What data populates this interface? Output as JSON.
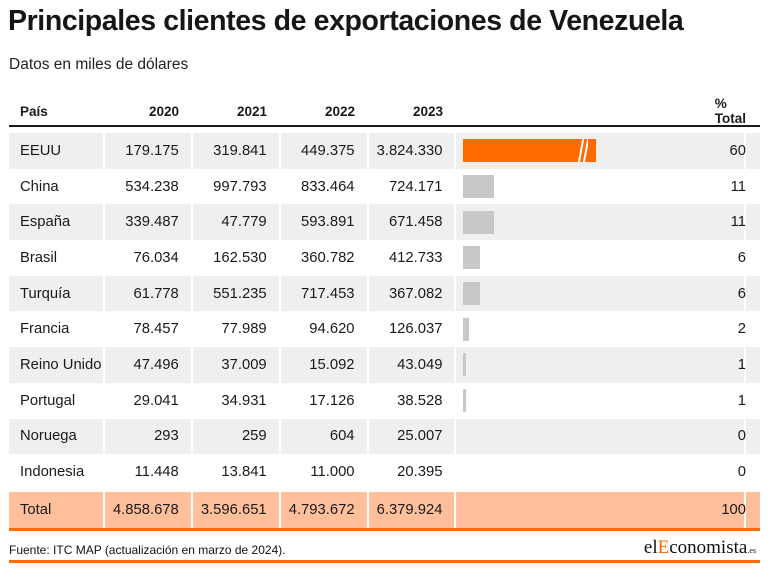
{
  "title": "Principales clientes de exportaciones de Venezuela",
  "subtitle": "Datos en miles de dólares",
  "headers": {
    "country": "País",
    "y2020": "2020",
    "y2021": "2021",
    "y2022": "2022",
    "y2023": "2023",
    "pct": "% Total"
  },
  "rows": [
    {
      "country": "EEUU",
      "y2020": "179.175",
      "y2021": "319.841",
      "y2022": "449.375",
      "y2023": "3.824.330",
      "pct": "60"
    },
    {
      "country": "China",
      "y2020": "534.238",
      "y2021": "997.793",
      "y2022": "833.464",
      "y2023": "724.171",
      "pct": "11"
    },
    {
      "country": "España",
      "y2020": "339.487",
      "y2021": "47.779",
      "y2022": "593.891",
      "y2023": "671.458",
      "pct": "11"
    },
    {
      "country": "Brasil",
      "y2020": "76.034",
      "y2021": "162.530",
      "y2022": "360.782",
      "y2023": "412.733",
      "pct": "6"
    },
    {
      "country": "Turquía",
      "y2020": "61.778",
      "y2021": "551.235",
      "y2022": "717.453",
      "y2023": "367.082",
      "pct": "6"
    },
    {
      "country": "Francia",
      "y2020": "78.457",
      "y2021": "77.989",
      "y2022": "94.620",
      "y2023": "126.037",
      "pct": "2"
    },
    {
      "country": "Reino Unido",
      "y2020": "47.496",
      "y2021": "37.009",
      "y2022": "15.092",
      "y2023": "43.049",
      "pct": "1"
    },
    {
      "country": "Portugal",
      "y2020": "29.041",
      "y2021": "34.931",
      "y2022": "17.126",
      "y2023": "38.528",
      "pct": "1"
    },
    {
      "country": "Noruega",
      "y2020": "293",
      "y2021": "259",
      "y2022": "604",
      "y2023": "25.007",
      "pct": "0"
    },
    {
      "country": "Indonesia",
      "y2020": "11.448",
      "y2021": "13.841",
      "y2022": "11.000",
      "y2023": "20.395",
      "pct": "0"
    }
  ],
  "total": {
    "country": "Total",
    "y2020": "4.858.678",
    "y2021": "3.596.651",
    "y2022": "4.793.672",
    "y2023": "6.379.924",
    "pct": "100"
  },
  "source": "Fuente: ITC MAP (actualización en marzo de 2024).",
  "logo": {
    "prefix": "el",
    "accent": "E",
    "rest": "conomista",
    "suffix": ".es"
  },
  "colors": {
    "accent": "#ff6a00",
    "bar": "#c8c8c8",
    "total_bg": "#ffbf9b",
    "stripe": "#efefef"
  },
  "chart_data": {
    "type": "table",
    "columns": [
      "País",
      "2020",
      "2021",
      "2022",
      "2023",
      "% Total"
    ],
    "bar_column": "% Total",
    "bar_series": {
      "categories": [
        "EEUU",
        "China",
        "España",
        "Brasil",
        "Turquía",
        "Francia",
        "Reino Unido",
        "Portugal",
        "Noruega",
        "Indonesia"
      ],
      "values": [
        60,
        11,
        11,
        6,
        6,
        2,
        1,
        1,
        0,
        0
      ],
      "truncated_categories": [
        "EEUU"
      ],
      "visual_levels": [
        0.47,
        0.11,
        0.11,
        0.06,
        0.06,
        0.02,
        0.01,
        0.01,
        0,
        0
      ]
    }
  }
}
